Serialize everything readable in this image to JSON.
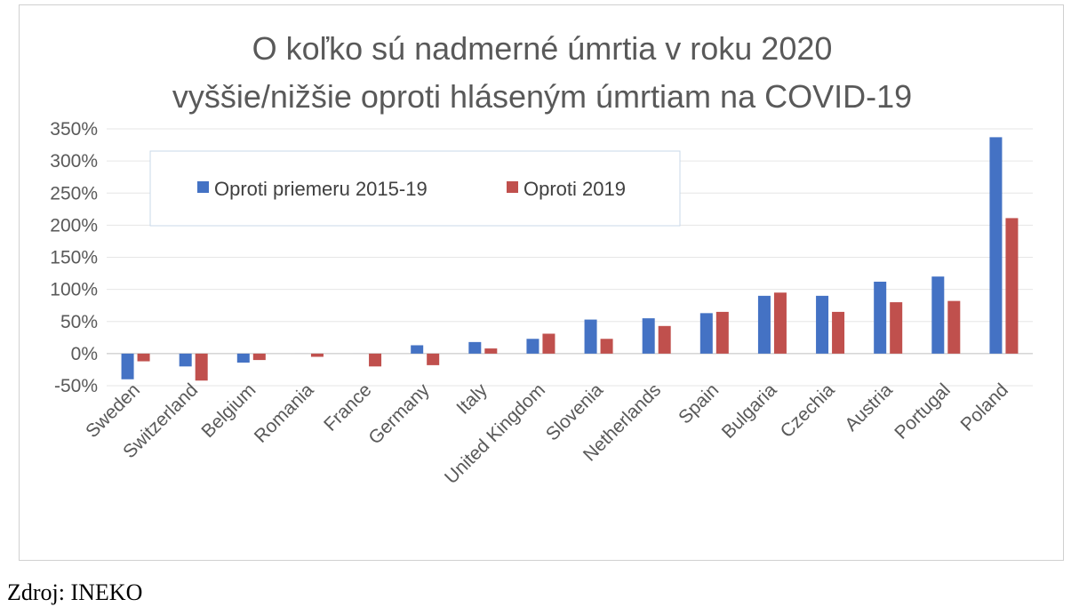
{
  "chart_data": {
    "type": "bar",
    "title_lines": [
      "O koľko sú nadmerné úmrtia v roku 2020",
      "vyššie/nižšie oproti hláseným úmrtiam na COVID-19"
    ],
    "categories": [
      "Sweden",
      "Switzerland",
      "Belgium",
      "Romania",
      "France",
      "Germany",
      "Italy",
      "United Kingdom",
      "Slovenia",
      "Netherlands",
      "Spain",
      "Bulgaria",
      "Czechia",
      "Austria",
      "Portugal",
      "Poland"
    ],
    "series": [
      {
        "name": "Oproti priemeru 2015-19",
        "color": "#4472c4",
        "values": [
          -40,
          -20,
          -14,
          0,
          0,
          13,
          18,
          23,
          53,
          55,
          63,
          90,
          90,
          112,
          120,
          337
        ]
      },
      {
        "name": "Oproti 2019",
        "color": "#c0504d",
        "values": [
          -12,
          -42,
          -10,
          -5,
          -20,
          -18,
          8,
          31,
          23,
          43,
          65,
          95,
          65,
          80,
          82,
          211
        ]
      }
    ],
    "yticks": [
      "350%",
      "300%",
      "250%",
      "200%",
      "150%",
      "100%",
      "50%",
      "0%",
      "-50%"
    ],
    "ylim": [
      -50,
      350
    ],
    "grid": true,
    "legend": "top-left"
  },
  "source_note": "Zdroj: INEKO"
}
